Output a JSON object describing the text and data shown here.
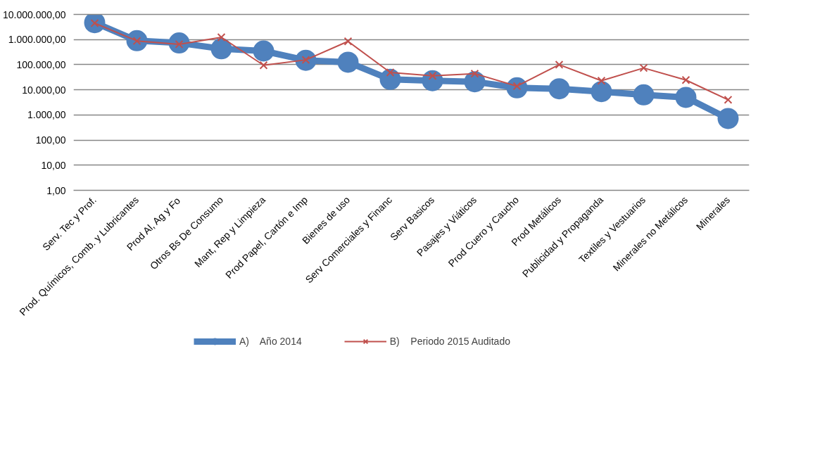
{
  "chart_data": {
    "type": "line",
    "log": "y",
    "grid": "y",
    "legend": "bottom",
    "categories": [
      "Serv. Tec y Prof.",
      "Prod. Químicos, Comb. y Lubricantes",
      "Prod Al, Ag y Fo",
      "Otros Bs De Consumo",
      "Mant, Rep y Limpieza",
      "Prod Papel, Cartón e Imp",
      "Bienes de uso",
      "Serv Comerciales y Financ",
      "Serv Basicos",
      "Pasajes y Viáticos",
      "Prod Cuero y Caucho",
      "Prod Metálicos",
      "Publicidad y Propaganda",
      "Textiles y Vestuarios",
      "Minerales no Metálicos",
      "Minerales"
    ],
    "ylim": [
      1,
      10000000
    ],
    "yticks": [
      {
        "value": 1,
        "label": "1,00"
      },
      {
        "value": 10,
        "label": "10,00"
      },
      {
        "value": 100,
        "label": "100,00"
      },
      {
        "value": 1000,
        "label": "1.000,00"
      },
      {
        "value": 10000,
        "label": "10.000,00"
      },
      {
        "value": 100000,
        "label": "100.000,00"
      },
      {
        "value": 1000000,
        "label": "1.000.000,00"
      },
      {
        "value": 10000000,
        "label": "10.000.000,00"
      }
    ],
    "series": [
      {
        "name": "A)    Año 2014",
        "color": "#4f81bd",
        "marker": "circle",
        "values": [
          4700000,
          900000,
          730000,
          430000,
          350000,
          150000,
          125000,
          26000,
          23000,
          21000,
          12000,
          11000,
          8500,
          6300,
          5000,
          720
        ]
      },
      {
        "name": "B)    Periodo 2015 Auditado",
        "color": "#c0504d",
        "marker": "cross",
        "values": [
          4500000,
          880000,
          650000,
          1230000,
          95000,
          155000,
          850000,
          49000,
          36000,
          44000,
          14000,
          100000,
          23000,
          74000,
          24500,
          4000
        ]
      }
    ]
  }
}
